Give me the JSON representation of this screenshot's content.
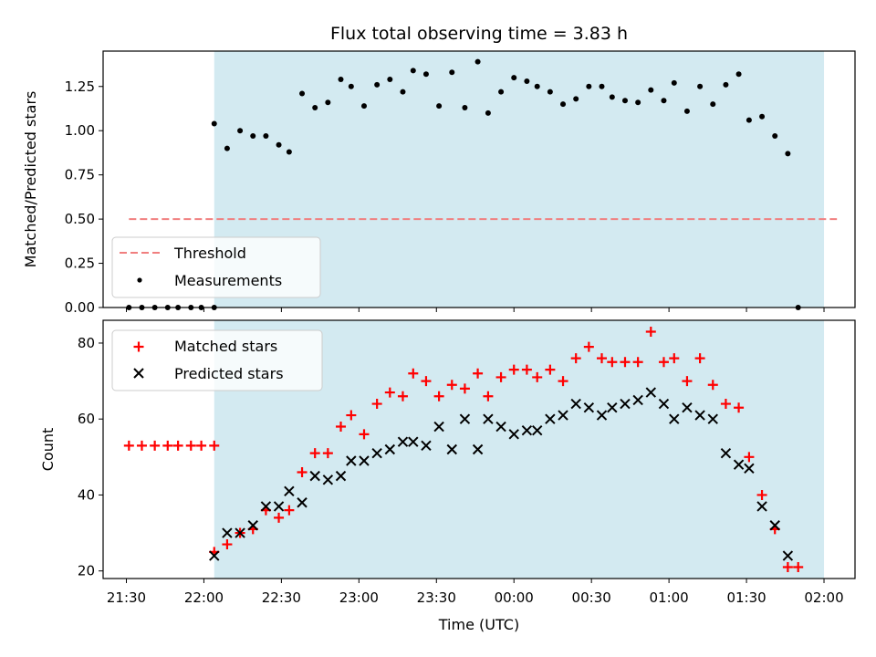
{
  "chart_data": [
    {
      "type": "scatter",
      "title": "Flux total observing time = 3.83 h",
      "xlabel": "",
      "ylabel": "Matched/Predicted stars",
      "ylim": [
        0,
        1.45
      ],
      "yticks": [
        "0.00",
        "0.25",
        "0.50",
        "0.75",
        "1.00",
        "1.25"
      ],
      "xlim": [
        "21:21",
        "02:12"
      ],
      "observing_window": [
        "22:04",
        "02:00"
      ],
      "legend": {
        "position": "lower-left"
      },
      "threshold": {
        "name": "Threshold",
        "value": 0.5,
        "x": [
          "21:31",
          "02:05"
        ],
        "color": "#f07f7f"
      },
      "series": [
        {
          "name": "Measurements",
          "color": "#000000",
          "points": [
            [
              "21:31",
              0
            ],
            [
              "21:36",
              0
            ],
            [
              "21:41",
              0
            ],
            [
              "21:46",
              0
            ],
            [
              "21:50",
              0
            ],
            [
              "21:55",
              0
            ],
            [
              "21:59",
              0
            ],
            [
              "22:04",
              0
            ],
            [
              "22:04",
              1.04
            ],
            [
              "22:09",
              0.9
            ],
            [
              "22:14",
              1.0
            ],
            [
              "22:19",
              0.97
            ],
            [
              "22:24",
              0.97
            ],
            [
              "22:29",
              0.92
            ],
            [
              "22:33",
              0.88
            ],
            [
              "22:38",
              1.21
            ],
            [
              "22:43",
              1.13
            ],
            [
              "22:48",
              1.16
            ],
            [
              "22:53",
              1.29
            ],
            [
              "22:57",
              1.25
            ],
            [
              "23:02",
              1.14
            ],
            [
              "23:07",
              1.26
            ],
            [
              "23:12",
              1.29
            ],
            [
              "23:17",
              1.22
            ],
            [
              "23:21",
              1.34
            ],
            [
              "23:26",
              1.32
            ],
            [
              "23:31",
              1.14
            ],
            [
              "23:36",
              1.33
            ],
            [
              "23:41",
              1.13
            ],
            [
              "23:46",
              1.39
            ],
            [
              "23:50",
              1.1
            ],
            [
              "23:55",
              1.22
            ],
            [
              "00:00",
              1.3
            ],
            [
              "00:05",
              1.28
            ],
            [
              "00:09",
              1.25
            ],
            [
              "00:14",
              1.22
            ],
            [
              "00:19",
              1.15
            ],
            [
              "00:24",
              1.18
            ],
            [
              "00:29",
              1.25
            ],
            [
              "00:34",
              1.25
            ],
            [
              "00:38",
              1.19
            ],
            [
              "00:43",
              1.17
            ],
            [
              "00:48",
              1.16
            ],
            [
              "00:53",
              1.23
            ],
            [
              "00:58",
              1.17
            ],
            [
              "01:02",
              1.27
            ],
            [
              "01:07",
              1.11
            ],
            [
              "01:12",
              1.25
            ],
            [
              "01:17",
              1.15
            ],
            [
              "01:22",
              1.26
            ],
            [
              "01:27",
              1.32
            ],
            [
              "01:31",
              1.06
            ],
            [
              "01:36",
              1.08
            ],
            [
              "01:41",
              0.97
            ],
            [
              "01:46",
              0.87
            ],
            [
              "01:50",
              0
            ]
          ]
        }
      ]
    },
    {
      "type": "scatter",
      "title": "",
      "xlabel": "Time (UTC)",
      "ylabel": "Count",
      "ylim": [
        18,
        86
      ],
      "yticks": [
        "20",
        "40",
        "60",
        "80"
      ],
      "xticks": [
        "21:30",
        "22:00",
        "22:30",
        "23:00",
        "23:30",
        "00:00",
        "00:30",
        "01:00",
        "01:30",
        "02:00"
      ],
      "xlim": [
        "21:21",
        "02:12"
      ],
      "observing_window": [
        "22:04",
        "02:00"
      ],
      "legend": {
        "position": "top-left"
      },
      "series": [
        {
          "name": "Matched stars",
          "marker": "+",
          "color": "#ff0000",
          "points": [
            [
              "21:31",
              53
            ],
            [
              "21:36",
              53
            ],
            [
              "21:41",
              53
            ],
            [
              "21:46",
              53
            ],
            [
              "21:50",
              53
            ],
            [
              "21:55",
              53
            ],
            [
              "21:59",
              53
            ],
            [
              "22:04",
              53
            ],
            [
              "22:04",
              25
            ],
            [
              "22:09",
              27
            ],
            [
              "22:14",
              30
            ],
            [
              "22:19",
              31
            ],
            [
              "22:24",
              36
            ],
            [
              "22:29",
              34
            ],
            [
              "22:33",
              36
            ],
            [
              "22:38",
              46
            ],
            [
              "22:43",
              51
            ],
            [
              "22:48",
              51
            ],
            [
              "22:53",
              58
            ],
            [
              "22:57",
              61
            ],
            [
              "23:02",
              56
            ],
            [
              "23:07",
              64
            ],
            [
              "23:12",
              67
            ],
            [
              "23:17",
              66
            ],
            [
              "23:21",
              72
            ],
            [
              "23:26",
              70
            ],
            [
              "23:31",
              66
            ],
            [
              "23:36",
              69
            ],
            [
              "23:41",
              68
            ],
            [
              "23:46",
              72
            ],
            [
              "23:50",
              66
            ],
            [
              "23:55",
              71
            ],
            [
              "00:00",
              73
            ],
            [
              "00:05",
              73
            ],
            [
              "00:09",
              71
            ],
            [
              "00:14",
              73
            ],
            [
              "00:19",
              70
            ],
            [
              "00:24",
              76
            ],
            [
              "00:29",
              79
            ],
            [
              "00:34",
              76
            ],
            [
              "00:38",
              75
            ],
            [
              "00:43",
              75
            ],
            [
              "00:48",
              75
            ],
            [
              "00:53",
              83
            ],
            [
              "00:58",
              75
            ],
            [
              "01:02",
              76
            ],
            [
              "01:07",
              70
            ],
            [
              "01:12",
              76
            ],
            [
              "01:17",
              69
            ],
            [
              "01:22",
              64
            ],
            [
              "01:27",
              63
            ],
            [
              "01:31",
              50
            ],
            [
              "01:36",
              40
            ],
            [
              "01:41",
              31
            ],
            [
              "01:46",
              21
            ],
            [
              "01:50",
              21
            ]
          ]
        },
        {
          "name": "Predicted stars",
          "marker": "x",
          "color": "#000000",
          "points": [
            [
              "22:04",
              24
            ],
            [
              "22:09",
              30
            ],
            [
              "22:14",
              30
            ],
            [
              "22:19",
              32
            ],
            [
              "22:24",
              37
            ],
            [
              "22:29",
              37
            ],
            [
              "22:33",
              41
            ],
            [
              "22:38",
              38
            ],
            [
              "22:43",
              45
            ],
            [
              "22:48",
              44
            ],
            [
              "22:53",
              45
            ],
            [
              "22:57",
              49
            ],
            [
              "23:02",
              49
            ],
            [
              "23:07",
              51
            ],
            [
              "23:12",
              52
            ],
            [
              "23:17",
              54
            ],
            [
              "23:21",
              54
            ],
            [
              "23:26",
              53
            ],
            [
              "23:31",
              58
            ],
            [
              "23:36",
              52
            ],
            [
              "23:41",
              60
            ],
            [
              "23:46",
              52
            ],
            [
              "23:50",
              60
            ],
            [
              "23:55",
              58
            ],
            [
              "00:00",
              56
            ],
            [
              "00:05",
              57
            ],
            [
              "00:09",
              57
            ],
            [
              "00:14",
              60
            ],
            [
              "00:19",
              61
            ],
            [
              "00:24",
              64
            ],
            [
              "00:29",
              63
            ],
            [
              "00:34",
              61
            ],
            [
              "00:38",
              63
            ],
            [
              "00:43",
              64
            ],
            [
              "00:48",
              65
            ],
            [
              "00:53",
              67
            ],
            [
              "00:58",
              64
            ],
            [
              "01:02",
              60
            ],
            [
              "01:07",
              63
            ],
            [
              "01:12",
              61
            ],
            [
              "01:17",
              60
            ],
            [
              "01:22",
              51
            ],
            [
              "01:27",
              48
            ],
            [
              "01:31",
              47
            ],
            [
              "01:36",
              37
            ],
            [
              "01:41",
              32
            ],
            [
              "01:46",
              24
            ]
          ]
        }
      ]
    }
  ],
  "style": {
    "window_fill": "#d3eaf1",
    "axes_color": "#000000"
  }
}
